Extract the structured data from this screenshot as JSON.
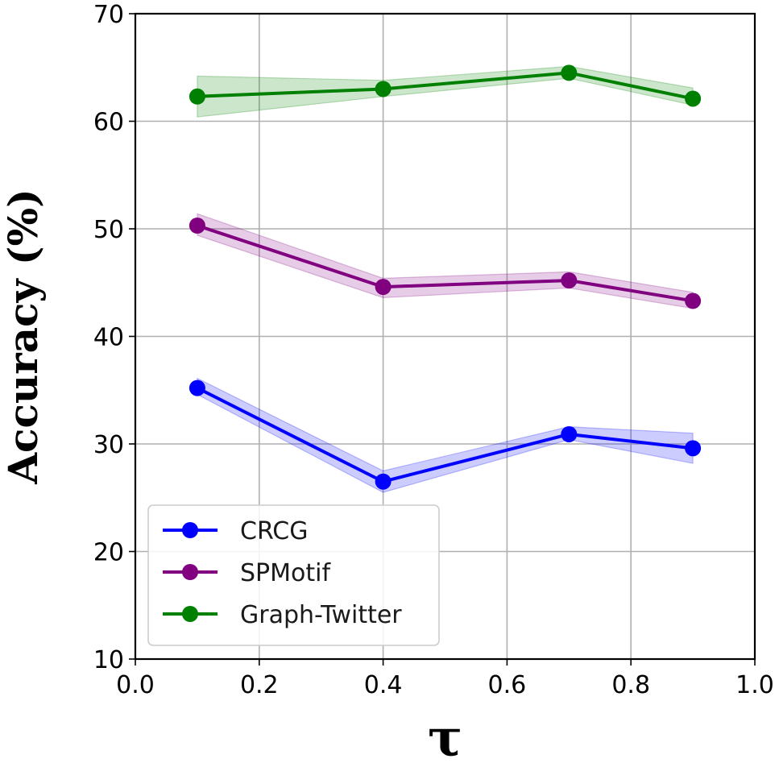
{
  "chart_data": {
    "type": "line",
    "title": "",
    "xlabel": "τ",
    "ylabel": "Accuracy (%)",
    "x": [
      0.1,
      0.4,
      0.7,
      0.9
    ],
    "xlim": [
      0.0,
      1.0
    ],
    "ylim": [
      10,
      70
    ],
    "xticks": [
      "0.0",
      "0.2",
      "0.4",
      "0.6",
      "0.8",
      "1.0"
    ],
    "yticks": [
      "10",
      "20",
      "30",
      "40",
      "50",
      "60",
      "70"
    ],
    "xtick_values": [
      0.0,
      0.2,
      0.4,
      0.6,
      0.8,
      1.0
    ],
    "ytick_values": [
      10,
      20,
      30,
      40,
      50,
      60,
      70
    ],
    "grid": true,
    "legend_position": "bottom-left",
    "series": [
      {
        "name": "CRCG",
        "color": "#0000ff",
        "values": [
          35.2,
          26.5,
          30.9,
          29.6
        ],
        "lower": [
          34.6,
          25.5,
          30.4,
          28.2
        ],
        "upper": [
          36.1,
          27.5,
          31.6,
          31.0
        ]
      },
      {
        "name": "SPMotif",
        "color": "#800080",
        "values": [
          50.3,
          44.6,
          45.2,
          43.3
        ],
        "lower": [
          49.4,
          43.6,
          44.5,
          42.6
        ],
        "upper": [
          51.4,
          45.4,
          46.0,
          44.1
        ]
      },
      {
        "name": "Graph-Twitter",
        "color": "#008000",
        "values": [
          62.3,
          63.0,
          64.5,
          62.1
        ],
        "lower": [
          60.4,
          62.3,
          64.0,
          61.5
        ],
        "upper": [
          64.2,
          63.8,
          65.1,
          63.1
        ]
      }
    ]
  }
}
